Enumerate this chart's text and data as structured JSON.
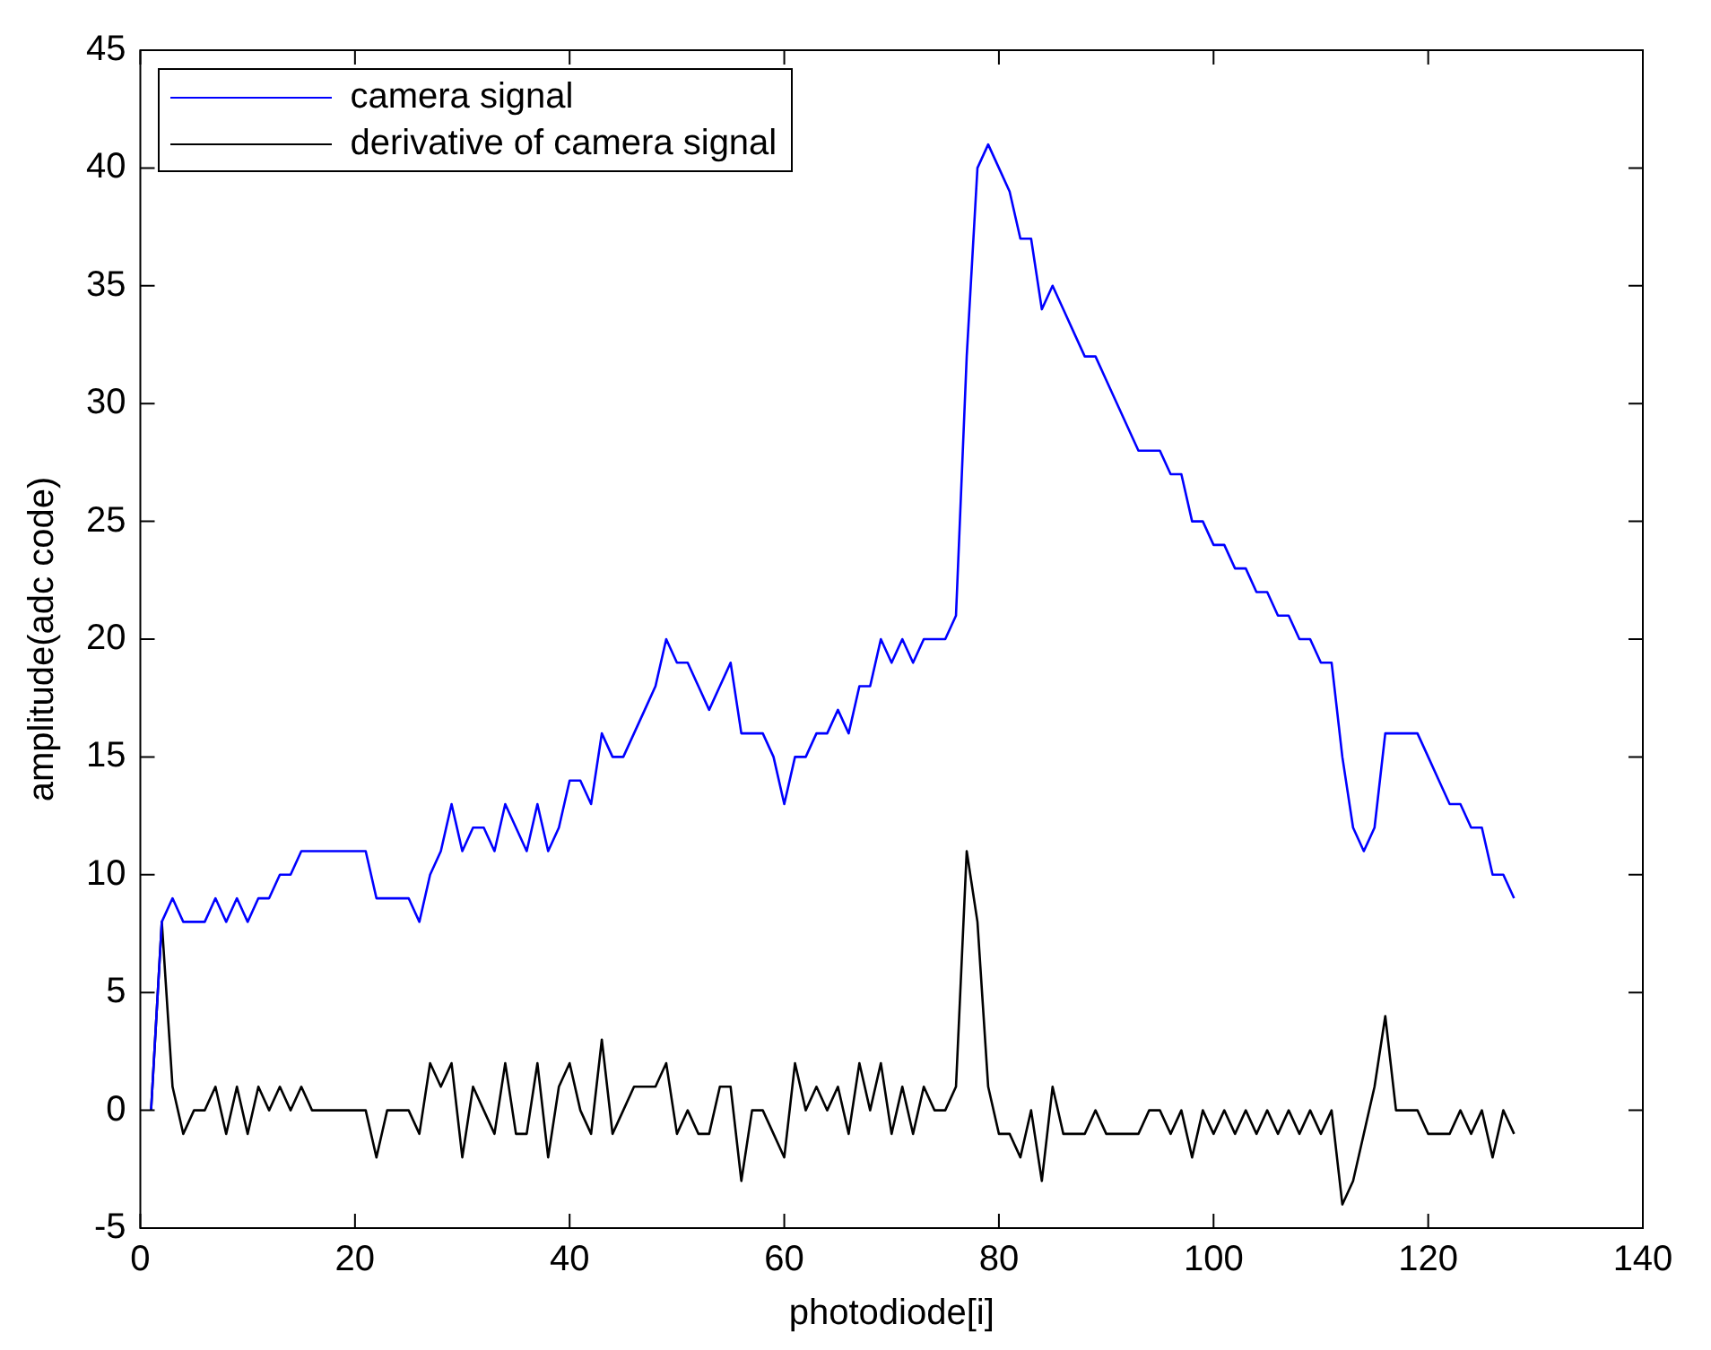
{
  "chart_data": {
    "type": "line",
    "xlabel": "photodiode[i]",
    "ylabel": "amplitude(adc code)",
    "x": [
      1,
      2,
      3,
      4,
      5,
      6,
      7,
      8,
      9,
      10,
      11,
      12,
      13,
      14,
      15,
      16,
      17,
      18,
      19,
      20,
      21,
      22,
      23,
      24,
      25,
      26,
      27,
      28,
      29,
      30,
      31,
      32,
      33,
      34,
      35,
      36,
      37,
      38,
      39,
      40,
      41,
      42,
      43,
      44,
      45,
      46,
      47,
      48,
      49,
      50,
      51,
      52,
      53,
      54,
      55,
      56,
      57,
      58,
      59,
      60,
      61,
      62,
      63,
      64,
      65,
      66,
      67,
      68,
      69,
      70,
      71,
      72,
      73,
      74,
      75,
      76,
      77,
      78,
      79,
      80,
      81,
      82,
      83,
      84,
      85,
      86,
      87,
      88,
      89,
      90,
      91,
      92,
      93,
      94,
      95,
      96,
      97,
      98,
      99,
      100,
      101,
      102,
      103,
      104,
      105,
      106,
      107,
      108,
      109,
      110,
      111,
      112,
      113,
      114,
      115,
      116,
      117,
      118,
      119,
      120,
      121,
      122,
      123,
      124,
      125,
      126,
      127,
      128
    ],
    "series": [
      {
        "name": "camera signal",
        "color": "#0000ff",
        "values": [
          0,
          8,
          9,
          8,
          8,
          8,
          9,
          8,
          9,
          8,
          9,
          9,
          10,
          10,
          11,
          11,
          11,
          11,
          11,
          11,
          11,
          9,
          9,
          9,
          9,
          8,
          10,
          11,
          13,
          11,
          12,
          12,
          11,
          13,
          12,
          11,
          13,
          11,
          12,
          14,
          14,
          13,
          16,
          15,
          15,
          16,
          17,
          18,
          20,
          19,
          19,
          18,
          17,
          18,
          19,
          16,
          16,
          16,
          15,
          13,
          15,
          15,
          16,
          16,
          17,
          16,
          18,
          18,
          20,
          19,
          20,
          19,
          20,
          20,
          20,
          21,
          32,
          40,
          41,
          40,
          39,
          37,
          37,
          34,
          35,
          34,
          33,
          32,
          32,
          31,
          30,
          29,
          28,
          28,
          28,
          27,
          27,
          25,
          25,
          24,
          24,
          23,
          23,
          22,
          22,
          21,
          21,
          20,
          20,
          19,
          19,
          15,
          12,
          11,
          12,
          16,
          16,
          16,
          16,
          15,
          14,
          13,
          13,
          12,
          12,
          10,
          10,
          9
        ]
      },
      {
        "name": "derivative of camera signal",
        "color": "#000000",
        "values": [
          0,
          8,
          1,
          -1,
          0,
          0,
          1,
          -1,
          1,
          -1,
          1,
          0,
          1,
          0,
          1,
          0,
          0,
          0,
          0,
          0,
          0,
          -2,
          0,
          0,
          0,
          -1,
          2,
          1,
          2,
          -2,
          1,
          0,
          -1,
          2,
          -1,
          -1,
          2,
          -2,
          1,
          2,
          0,
          -1,
          3,
          -1,
          0,
          1,
          1,
          1,
          2,
          -1,
          0,
          -1,
          -1,
          1,
          1,
          -3,
          0,
          0,
          -1,
          -2,
          2,
          0,
          1,
          0,
          1,
          -1,
          2,
          0,
          2,
          -1,
          1,
          -1,
          1,
          0,
          0,
          1,
          11,
          8,
          1,
          -1,
          -1,
          -2,
          0,
          -3,
          1,
          -1,
          -1,
          -1,
          0,
          -1,
          -1,
          -1,
          -1,
          0,
          0,
          -1,
          0,
          -2,
          0,
          -1,
          0,
          -1,
          0,
          -1,
          0,
          -1,
          0,
          -1,
          0,
          -1,
          0,
          -4,
          -3,
          -1,
          1,
          4,
          0,
          0,
          0,
          -1,
          -1,
          -1,
          0,
          -1,
          0,
          -2,
          0,
          -1
        ]
      }
    ],
    "xlim": [
      0,
      140
    ],
    "xticks": [
      0,
      20,
      40,
      60,
      80,
      100,
      120,
      140
    ],
    "ylim": [
      -5,
      45
    ],
    "yticks": [
      -5,
      0,
      5,
      10,
      15,
      20,
      25,
      30,
      35,
      40,
      45
    ],
    "grid": false,
    "legend": "top left",
    "marker": "none",
    "line_style": "solid"
  }
}
